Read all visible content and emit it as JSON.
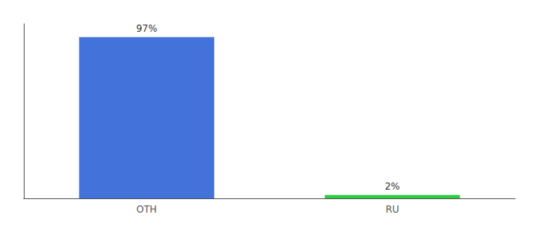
{
  "chart_data": {
    "type": "bar",
    "categories": [
      "OTH",
      "RU"
    ],
    "values": [
      97,
      2
    ],
    "value_labels": [
      "97%",
      "2%"
    ],
    "colors": [
      "#4472db",
      "#2ecc40"
    ],
    "ylim": [
      0,
      105
    ],
    "grid": false,
    "data_labels": true,
    "tick_labels": "x"
  }
}
